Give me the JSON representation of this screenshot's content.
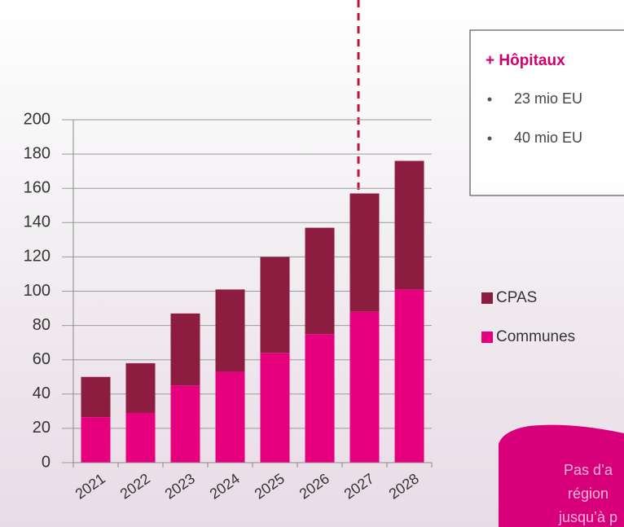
{
  "chart_data": {
    "type": "bar",
    "stacked": true,
    "categories": [
      "2021",
      "2022",
      "2023",
      "2024",
      "2025",
      "2026",
      "2027",
      "2028"
    ],
    "series": [
      {
        "name": "Communes",
        "color": "#e6007e",
        "values": [
          26.5,
          29,
          45,
          53,
          64,
          75,
          88,
          101
        ]
      },
      {
        "name": "CPAS",
        "color": "#8c1d40",
        "values": [
          23.5,
          29,
          42,
          48,
          56,
          62,
          69,
          75
        ]
      }
    ],
    "ylim": [
      0,
      200
    ],
    "yticks": [
      0,
      20,
      40,
      60,
      80,
      100,
      120,
      140,
      160,
      180,
      200
    ],
    "grid": true
  },
  "info_box": {
    "title": "+ Hôpitaux",
    "bullets": [
      "23 mio EU",
      "40 mio EU"
    ]
  },
  "callout": {
    "lines": [
      "Pas d’a",
      "région",
      "jusqu’à p"
    ]
  }
}
